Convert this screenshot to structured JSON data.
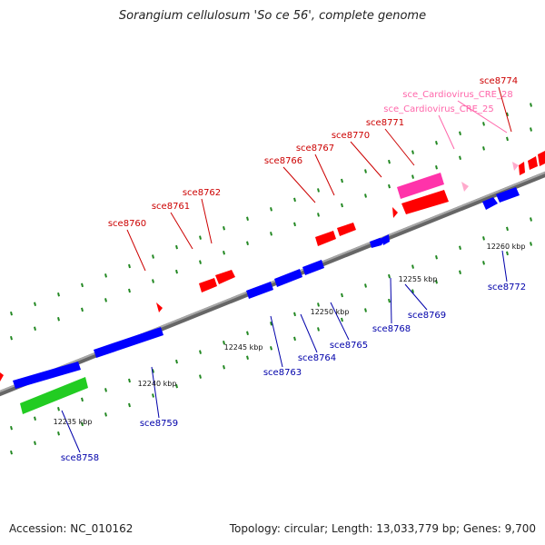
{
  "title": "Sorangium cellulosum 'So ce 56', complete genome",
  "footer": {
    "accession": "Accession: NC_010162",
    "summary": "Topology: circular; Length: 13,033,779 bp; Genes: 9,700"
  },
  "colors": {
    "forward_gene": "#ff0000",
    "reverse_gene": "#0000ff",
    "rna_feature": "#ff33aa",
    "other_feature": "#22cc22",
    "forward_label": "#cc0000",
    "reverse_label": "#0000aa",
    "rna_label": "#ff66aa",
    "backbone": "#888888",
    "tick": "#228822"
  },
  "tick_labels": [
    "12235 kbp",
    "12240 kbp",
    "12245 kbp",
    "12250 kbp",
    "12255 kbp",
    "12260 kbp"
  ],
  "forward_labels": [
    "sce8760",
    "sce8761",
    "sce8762",
    "sce8766",
    "sce8767",
    "sce8770",
    "sce8771",
    "sce8774"
  ],
  "rna_labels": [
    "sce_Cardiovirus_CRE_25",
    "sce_Cardiovirus_CRE_28"
  ],
  "reverse_labels": [
    "sce8758",
    "sce8759",
    "sce8763",
    "sce8764",
    "sce8765",
    "sce8768",
    "sce8769",
    "sce8772"
  ]
}
